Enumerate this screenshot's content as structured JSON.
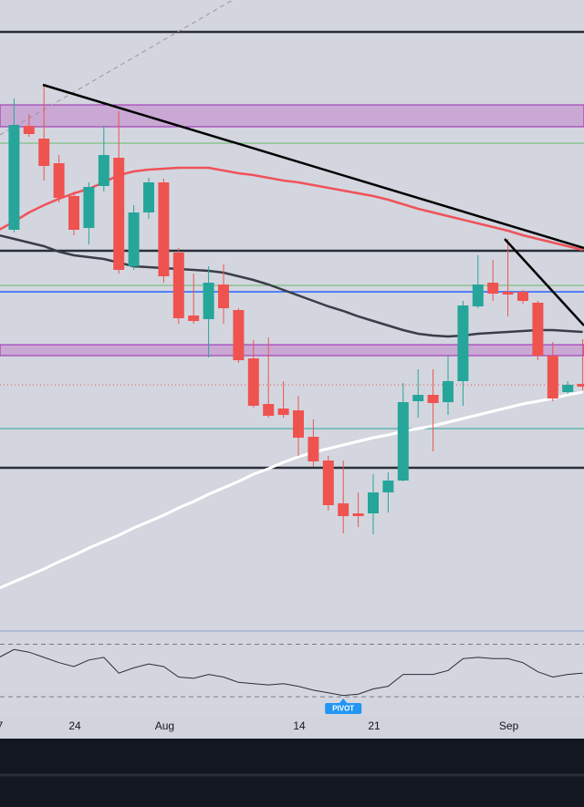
{
  "chart_data": {
    "type": "candlestick",
    "categories": [
      "7",
      null,
      null,
      null,
      null,
      "24",
      null,
      null,
      null,
      null,
      null,
      "Aug",
      null,
      null,
      null,
      null,
      null,
      null,
      null,
      null,
      "14",
      null,
      null,
      null,
      null,
      "21",
      null,
      null,
      null,
      null,
      null,
      null,
      null,
      null,
      "Sep",
      null,
      null,
      null,
      null,
      null
    ],
    "open": [
      null,
      438,
      552,
      538,
      511,
      475,
      440,
      486,
      517,
      398,
      457,
      490,
      413,
      344,
      340,
      378,
      350,
      297,
      247,
      242,
      240,
      211,
      185,
      138,
      127,
      127,
      150,
      163,
      250,
      257,
      249,
      272,
      354,
      380,
      370,
      370,
      358,
      300,
      260,
      269
    ],
    "high": [
      null,
      582,
      565,
      597,
      520,
      480,
      490,
      552,
      568,
      465,
      495,
      494,
      418,
      390,
      398,
      400,
      352,
      317,
      320,
      272,
      256,
      230,
      190,
      185,
      150,
      170,
      172,
      270,
      285,
      285,
      300,
      360,
      410,
      405,
      428,
      372,
      360,
      315,
      272,
      318
    ],
    "low": [
      null,
      435,
      540,
      492,
      468,
      432,
      422,
      480,
      390,
      394,
      450,
      380,
      335,
      335,
      298,
      335,
      292,
      243,
      232,
      232,
      190,
      178,
      130,
      105,
      112,
      104,
      128,
      162,
      232,
      195,
      235,
      245,
      352,
      360,
      343,
      357,
      295,
      250,
      258,
      262
    ],
    "close": [
      null,
      553,
      543,
      508,
      473,
      438,
      485,
      520,
      394,
      457,
      490,
      387,
      341,
      338,
      380,
      352,
      295,
      245,
      234,
      235,
      210,
      184,
      136,
      124,
      124,
      150,
      163,
      249,
      257,
      248,
      272,
      355,
      378,
      368,
      367,
      360,
      300,
      253,
      268,
      266
    ],
    "up_color": "#26a69a",
    "down_color": "#ef5350",
    "ylim": [
      0,
      690
    ],
    "series": [
      {
        "color": "#f0525a",
        "values": [
          438,
          447,
          457,
          465,
          472,
          478,
          483,
          490,
          498,
          502,
          504,
          505,
          506,
          506,
          506,
          503,
          500,
          498,
          495,
          492,
          490,
          487,
          484,
          481,
          478,
          475,
          471,
          466,
          461,
          457,
          453,
          449,
          445,
          441,
          437,
          432,
          428,
          424,
          420,
          416
        ]
      },
      {
        "color": "#3a3d48",
        "values": [
          432,
          428,
          424,
          420,
          414,
          410,
          408,
          406,
          402,
          398,
          397,
          396,
          395,
          394,
          393,
          391,
          387,
          383,
          378,
          372,
          366,
          360,
          354,
          349,
          343,
          338,
          333,
          328,
          324,
          322,
          321,
          322,
          324,
          325,
          326,
          327,
          328,
          328,
          327,
          326
        ]
      },
      {
        "color": "#ffffff",
        "values": [
          45,
          52,
          59,
          66,
          74,
          81,
          89,
          96,
          103,
          111,
          118,
          125,
          133,
          140,
          148,
          155,
          162,
          170,
          176,
          183,
          189,
          194,
          198,
          202,
          206,
          210,
          213,
          217,
          220,
          223,
          227,
          231,
          235,
          239,
          243,
          247,
          250,
          253,
          257,
          260
        ]
      }
    ],
    "oscillator": {
      "values": [
        60,
        66,
        64,
        60,
        56,
        53,
        58,
        60,
        48,
        52,
        55,
        53,
        45,
        44,
        47,
        45,
        41,
        40,
        39,
        40,
        38,
        35,
        33,
        31,
        32,
        36,
        38,
        47,
        47,
        47,
        50,
        59,
        60,
        59,
        59,
        56,
        49,
        45,
        47,
        48
      ],
      "color": "#2a2e39",
      "ylim": [
        12,
        78
      ],
      "bands": [
        70,
        30
      ]
    },
    "annotations": [
      {
        "text": "PIVOT",
        "index": 23
      }
    ]
  }
}
